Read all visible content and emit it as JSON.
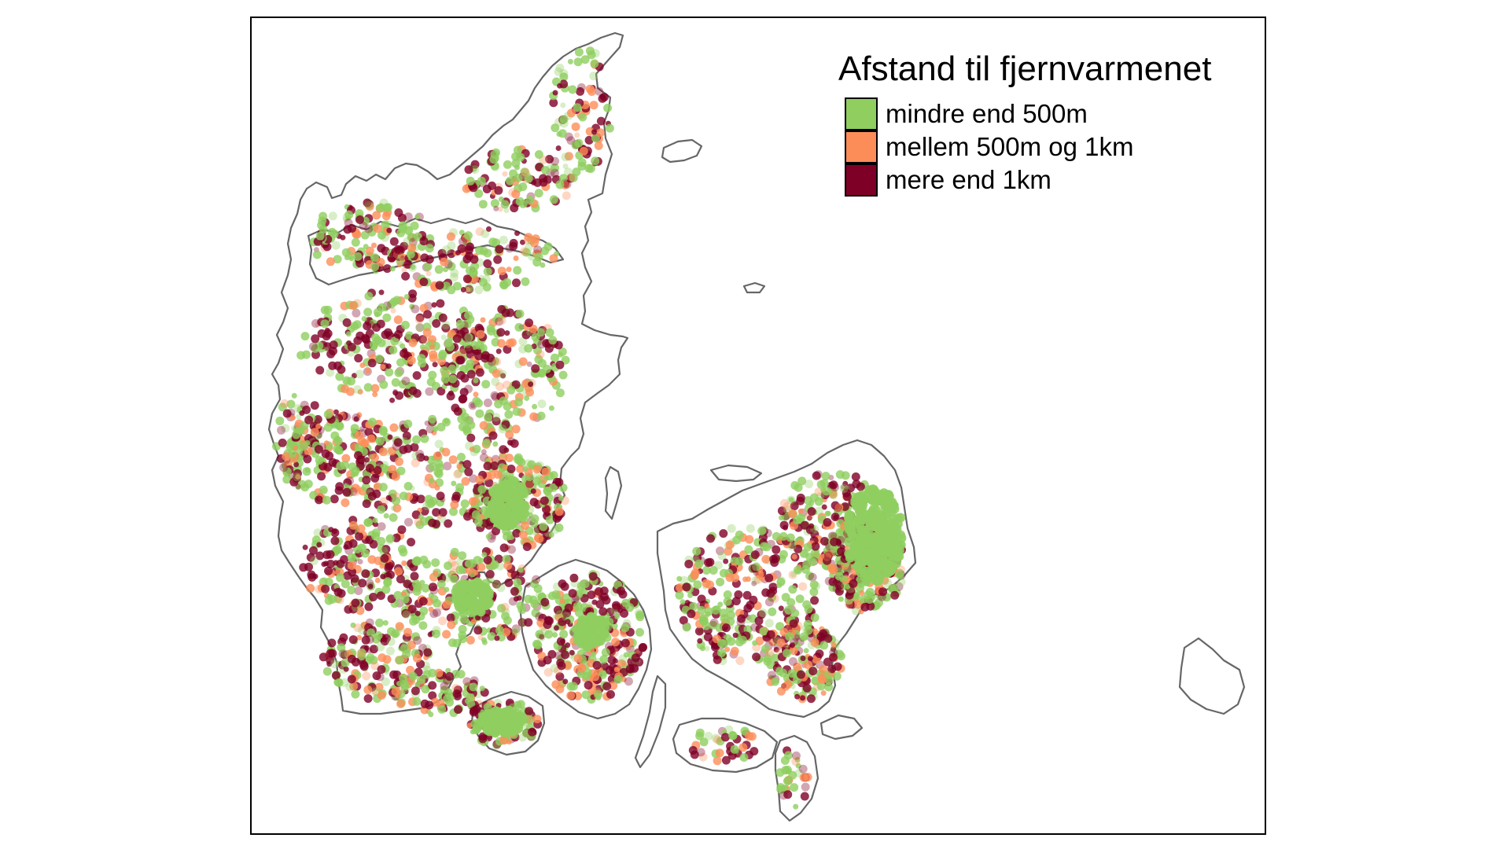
{
  "map": {
    "region": "Denmark",
    "coastline_color": "#666666",
    "background_color": "#ffffff",
    "point_style": "semi-transparent dots",
    "point_density_note": "",
    "legend_placement": "top-right"
  },
  "legend": {
    "title": "Afstand til fjernvarmenet",
    "items": [
      {
        "label": "mindre end 500m",
        "color": "#8fce5f"
      },
      {
        "label": "mellem 500m og 1km",
        "color": "#fc8d59"
      },
      {
        "label": "mere end 1km",
        "color": "#7f0026"
      }
    ]
  },
  "chart_data": {
    "type": "scatter",
    "title": "",
    "xlabel": "",
    "ylabel": "",
    "grid": false,
    "legend_title": "Afstand til fjernvarmenet",
    "categories": [
      "mindre end 500m",
      "mellem 500m og 1km",
      "mere end 1km"
    ],
    "colors": [
      "#8fce5f",
      "#fc8d59",
      "#7f0026"
    ]
  }
}
